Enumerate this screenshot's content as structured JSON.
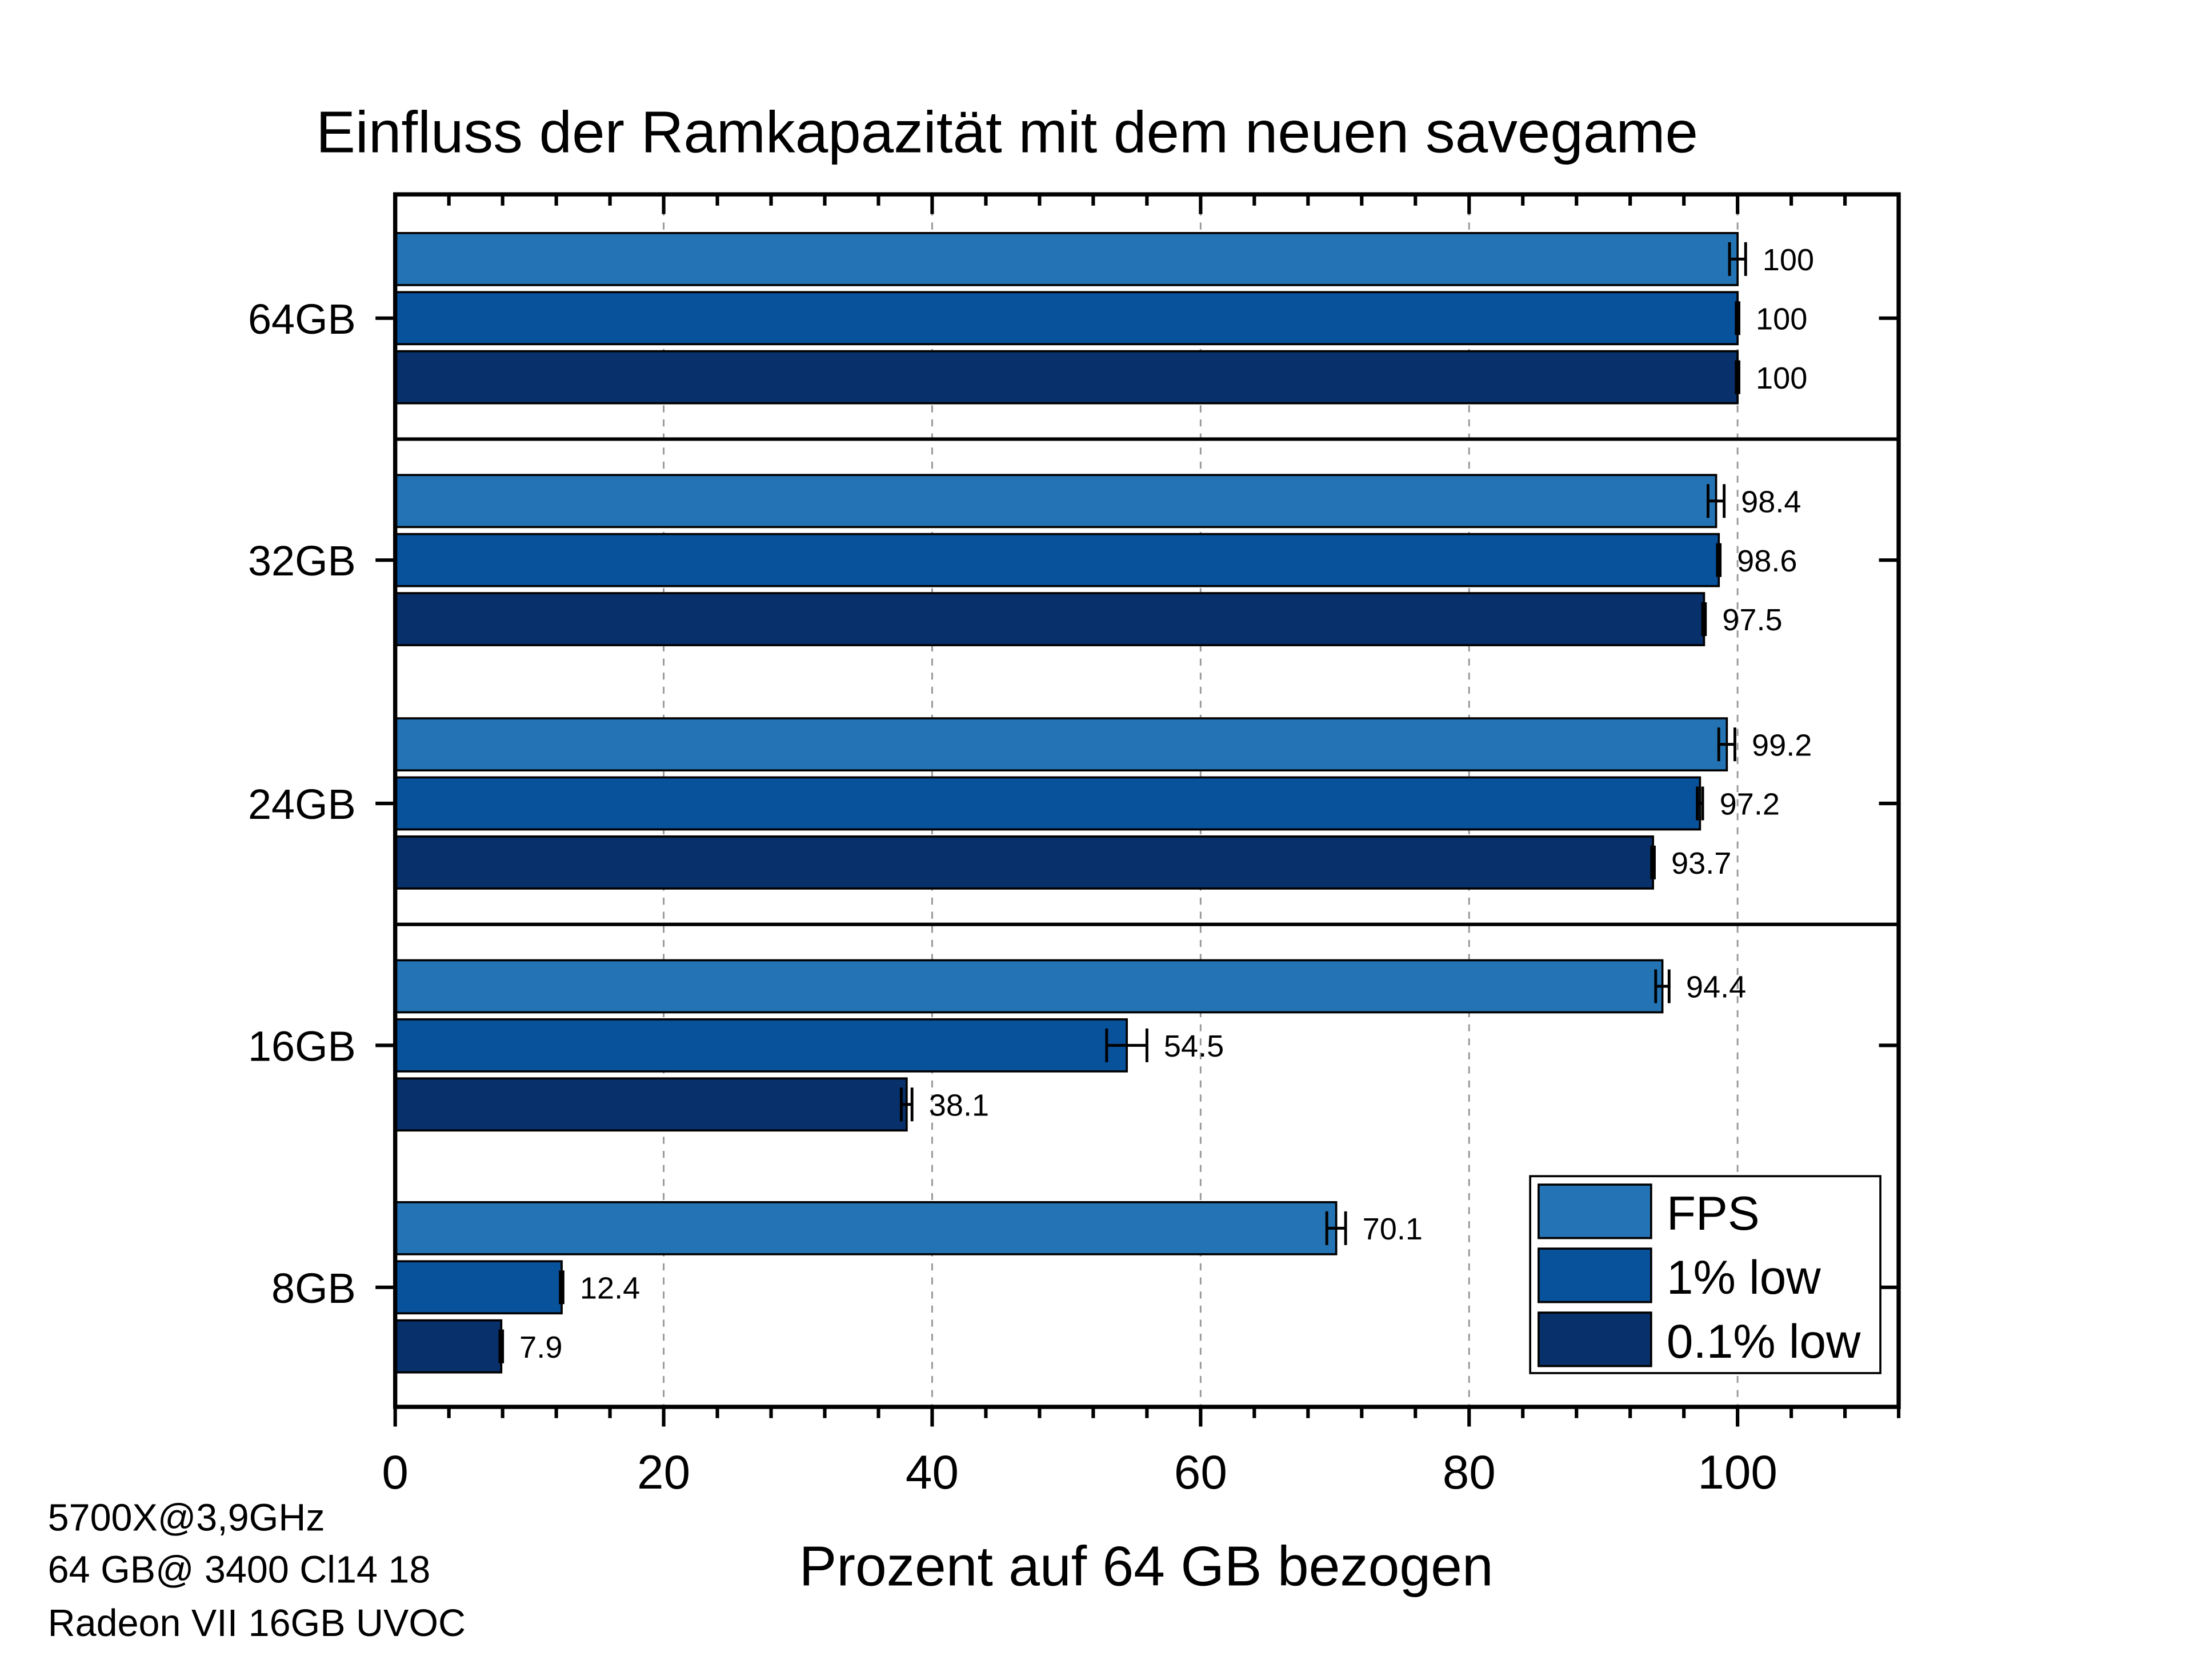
{
  "chart_data": {
    "type": "bar",
    "orientation": "horizontal",
    "title": "Einfluss der Ramkapazität mit dem neuen savegame",
    "xlabel": "Prozent auf 64 GB bezogen",
    "ylabel": "",
    "xlim": [
      0,
      112
    ],
    "xticks": [
      0,
      20,
      40,
      60,
      80,
      100
    ],
    "grid": "vertical dashed",
    "legend_position": "bottom-right",
    "categories": [
      "64GB",
      "32GB",
      "24GB",
      "16GB",
      "8GB"
    ],
    "series": [
      {
        "name": "FPS",
        "color": "#2474b5",
        "values": [
          100,
          98.4,
          99.2,
          94.4,
          70.1
        ],
        "errors": [
          0.6,
          0.6,
          0.6,
          0.5,
          0.7
        ],
        "labels": [
          "100",
          "98.4",
          "99.2",
          "94.4",
          "70.1"
        ]
      },
      {
        "name": "1% low",
        "color": "#08529c",
        "values": [
          100,
          98.6,
          97.2,
          54.5,
          12.4
        ],
        "errors": [
          0.1,
          0.1,
          0.2,
          1.5,
          0.1
        ],
        "labels": [
          "100",
          "98.6",
          "97.2",
          "54.5",
          "12.4"
        ]
      },
      {
        "name": "0.1% low",
        "color": "#08306b",
        "values": [
          100,
          97.5,
          93.7,
          38.1,
          7.9
        ],
        "errors": [
          0.1,
          0.1,
          0.1,
          0.4,
          0.1
        ],
        "labels": [
          "100",
          "97.5",
          "93.7",
          "38.1",
          "7.9"
        ]
      }
    ],
    "annotations": [
      "5700X@3,9GHz",
      "64 GB@ 3400 Cl14 18",
      "Radeon VII 16GB UVOC"
    ]
  }
}
